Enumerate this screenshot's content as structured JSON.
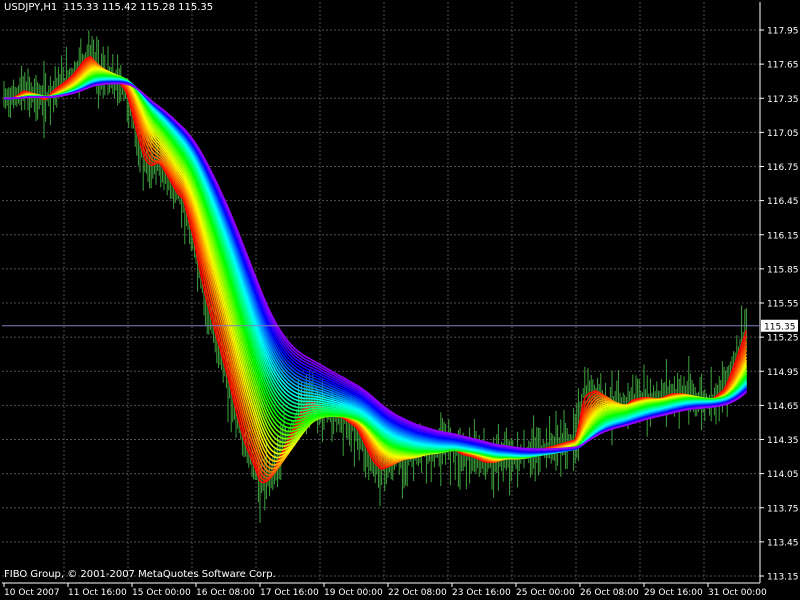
{
  "header": {
    "symbol": "USDJPY,H1",
    "ohlc": "115.33 115.42 115.28 115.35"
  },
  "footer": {
    "copyright": "FIBO Group, © 2001-2007 MetaQuotes Software Corp."
  },
  "colors": {
    "background": "#000000",
    "grid": "#505050",
    "axis": "#ffffff",
    "candles": "#3fa33f",
    "price_line": "#8080c0",
    "price_box": "#ffffff"
  },
  "chart_data": {
    "type": "line",
    "title": "USDJPY,H1",
    "ylim": [
      113.1,
      117.95
    ],
    "grid": true,
    "current_price": "115.35",
    "y_ticks": [
      "117.95",
      "117.65",
      "117.35",
      "117.05",
      "116.75",
      "116.45",
      "116.15",
      "115.85",
      "115.55",
      "115.25",
      "114.95",
      "114.65",
      "114.35",
      "114.05",
      "113.75",
      "113.45",
      "113.15"
    ],
    "x_ticks": [
      "10 Oct 2007",
      "11 Oct 16:00",
      "15 Oct 00:00",
      "16 Oct 08:00",
      "17 Oct 16:00",
      "19 Oct 00:00",
      "22 Oct 08:00",
      "23 Oct 16:00",
      "25 Oct 00:00",
      "26 Oct 08:00",
      "29 Oct 16:00",
      "31 Oct 00:00"
    ],
    "indicator": "rainbow moving-average ribbon (red = fastest → violet = slowest)",
    "price_path": {
      "x_index": [
        0,
        5,
        12,
        18,
        25,
        30,
        38,
        42,
        46,
        50,
        54,
        58,
        62,
        68,
        72,
        76,
        80,
        84,
        88,
        92,
        96,
        100,
        104,
        108,
        112,
        114,
        118,
        122,
        126,
        130,
        135,
        140,
        145,
        150,
        156,
        160,
        165,
        170,
        175,
        180,
        185,
        190,
        195,
        200,
        206,
        210,
        215,
        220,
        225,
        230,
        234,
        235,
        240,
        248,
        255,
        262,
        270,
        278,
        285,
        292,
        300,
        306,
        312,
        320,
        332,
        345,
        357,
        362,
        370,
        380,
        386,
        392,
        400,
        408,
        416,
        424,
        432,
        440,
        450,
        458,
        464
      ],
      "price": [
        117.35,
        117.35,
        117.42,
        117.38,
        117.33,
        117.42,
        117.5,
        117.55,
        117.62,
        117.7,
        117.72,
        117.6,
        117.55,
        117.5,
        117.48,
        117.4,
        117.18,
        116.95,
        116.78,
        116.75,
        116.8,
        116.7,
        116.6,
        116.5,
        116.45,
        116.3,
        116.1,
        115.8,
        115.55,
        115.35,
        115.1,
        114.85,
        114.55,
        114.3,
        114.1,
        113.95,
        114.0,
        114.15,
        114.3,
        114.45,
        114.6,
        114.7,
        114.65,
        114.6,
        114.55,
        114.55,
        114.5,
        114.45,
        114.3,
        114.15,
        114.1,
        114.08,
        114.12,
        114.2,
        114.2,
        114.25,
        114.25,
        114.3,
        114.22,
        114.2,
        114.15,
        114.15,
        114.2,
        114.18,
        114.25,
        114.3,
        114.35,
        114.75,
        114.78,
        114.65,
        114.62,
        114.7,
        114.72,
        114.7,
        114.75,
        114.75,
        114.7,
        114.68,
        114.8,
        115.1,
        115.35
      ]
    }
  }
}
